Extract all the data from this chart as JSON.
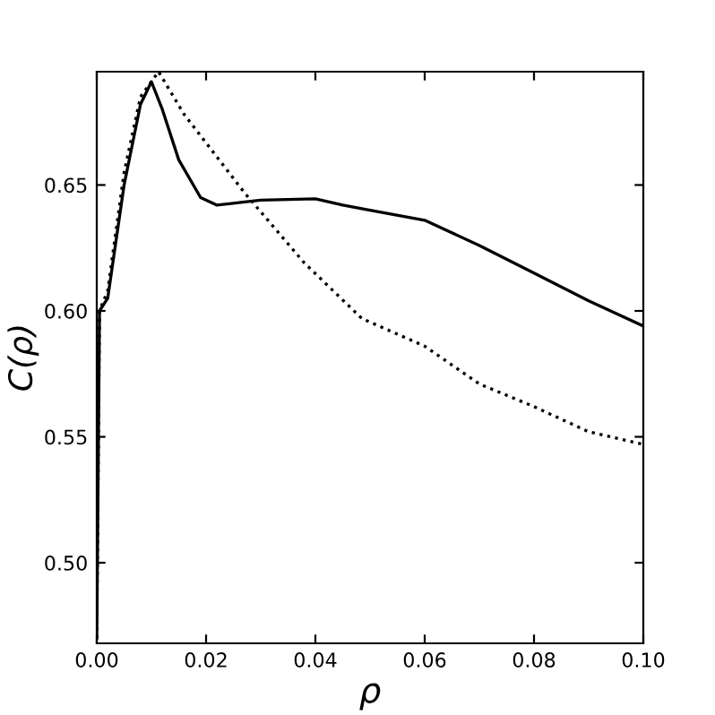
{
  "chart_data": {
    "type": "line",
    "xlabel": "ρ",
    "ylabel": "C(ρ)",
    "xlim": [
      0,
      0.1
    ],
    "ylim": [
      0.468,
      0.695
    ],
    "xticks": [
      {
        "value": 0,
        "label": "0.00"
      },
      {
        "value": 0.02,
        "label": "0.02"
      },
      {
        "value": 0.04,
        "label": "0.04"
      },
      {
        "value": 0.06,
        "label": "0.06"
      },
      {
        "value": 0.08,
        "label": "0.08"
      },
      {
        "value": 0.1,
        "label": "0.10"
      }
    ],
    "yticks": [
      {
        "value": 0.5,
        "label": "0.50"
      },
      {
        "value": 0.55,
        "label": "0.55"
      },
      {
        "value": 0.6,
        "label": "0.60"
      },
      {
        "value": 0.65,
        "label": "0.65"
      }
    ],
    "grid": false,
    "legend": false,
    "series": [
      {
        "color": "#000000",
        "line_style": "solid",
        "x": [
          0,
          0.0005,
          0.002,
          0.005,
          0.008,
          0.01,
          0.012,
          0.015,
          0.019,
          0.022,
          0.026,
          0.03,
          0.04,
          0.045,
          0.05,
          0.06,
          0.07,
          0.08,
          0.09,
          0.1
        ],
        "values": [
          0.47,
          0.6,
          0.605,
          0.65,
          0.682,
          0.691,
          0.68,
          0.66,
          0.645,
          0.642,
          0.643,
          0.644,
          0.6445,
          0.642,
          0.64,
          0.636,
          0.626,
          0.615,
          0.604,
          0.594
        ]
      },
      {
        "color": "#000000",
        "line_style": "dotted",
        "x": [
          0,
          0.0005,
          0.002,
          0.005,
          0.008,
          0.0113,
          0.016,
          0.027,
          0.038,
          0.0485,
          0.06,
          0.07,
          0.08,
          0.09,
          0.1
        ],
        "values": [
          0.47,
          0.6,
          0.608,
          0.655,
          0.685,
          0.695,
          0.678,
          0.647,
          0.619,
          0.597,
          0.586,
          0.571,
          0.562,
          0.552,
          0.547
        ]
      }
    ]
  }
}
